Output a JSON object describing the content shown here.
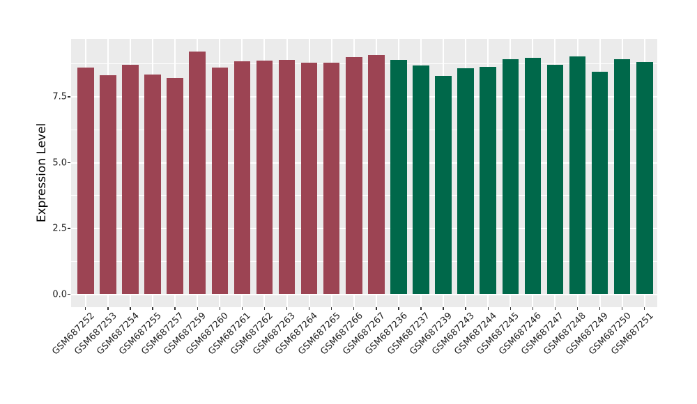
{
  "chart_data": {
    "type": "bar",
    "title": "",
    "xlabel": "",
    "ylabel": "Expression Level",
    "y_ticks": [
      0.0,
      2.5,
      5.0,
      7.5
    ],
    "y_tick_labels": [
      "0.0",
      "2.5",
      "5.0",
      "7.5"
    ],
    "y_minor_gridlines": [
      1.25,
      3.75,
      6.25,
      8.75
    ],
    "ylim": [
      -0.49,
      9.7
    ],
    "grid": true,
    "legend": "none",
    "panel_background": "#EBEBEB",
    "gridline_color": "#FFFFFF",
    "group_colors": {
      "group1": "#9C4453",
      "group2": "#00684A"
    },
    "bars": [
      {
        "label": "GSM687252",
        "value": 8.62,
        "group": "group1"
      },
      {
        "label": "GSM687253",
        "value": 8.31,
        "group": "group1"
      },
      {
        "label": "GSM687254",
        "value": 8.73,
        "group": "group1"
      },
      {
        "label": "GSM687255",
        "value": 8.35,
        "group": "group1"
      },
      {
        "label": "GSM687257",
        "value": 8.21,
        "group": "group1"
      },
      {
        "label": "GSM687259",
        "value": 9.22,
        "group": "group1"
      },
      {
        "label": "GSM687260",
        "value": 8.62,
        "group": "group1"
      },
      {
        "label": "GSM687261",
        "value": 8.85,
        "group": "group1"
      },
      {
        "label": "GSM687262",
        "value": 8.87,
        "group": "group1"
      },
      {
        "label": "GSM687263",
        "value": 8.91,
        "group": "group1"
      },
      {
        "label": "GSM687264",
        "value": 8.8,
        "group": "group1"
      },
      {
        "label": "GSM687265",
        "value": 8.8,
        "group": "group1"
      },
      {
        "label": "GSM687266",
        "value": 9.02,
        "group": "group1"
      },
      {
        "label": "GSM687267",
        "value": 9.08,
        "group": "group1"
      },
      {
        "label": "GSM687236",
        "value": 8.9,
        "group": "group2"
      },
      {
        "label": "GSM687237",
        "value": 8.68,
        "group": "group2"
      },
      {
        "label": "GSM687239",
        "value": 8.29,
        "group": "group2"
      },
      {
        "label": "GSM687243",
        "value": 8.6,
        "group": "group2"
      },
      {
        "label": "GSM687244",
        "value": 8.65,
        "group": "group2"
      },
      {
        "label": "GSM687245",
        "value": 8.94,
        "group": "group2"
      },
      {
        "label": "GSM687246",
        "value": 8.98,
        "group": "group2"
      },
      {
        "label": "GSM687247",
        "value": 8.73,
        "group": "group2"
      },
      {
        "label": "GSM687248",
        "value": 9.05,
        "group": "group2"
      },
      {
        "label": "GSM687249",
        "value": 8.46,
        "group": "group2"
      },
      {
        "label": "GSM687250",
        "value": 8.93,
        "group": "group2"
      },
      {
        "label": "GSM687251",
        "value": 8.83,
        "group": "group2"
      }
    ]
  }
}
